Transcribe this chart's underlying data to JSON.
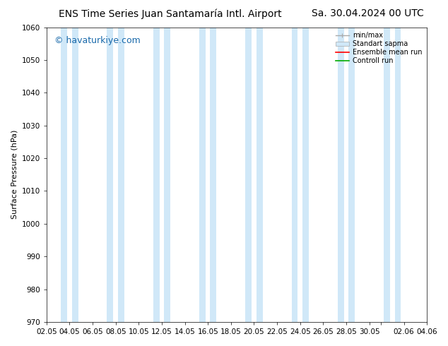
{
  "title_left": "ENS Time Series Juan Santamaría Intl. Airport",
  "title_right": "Sa. 30.04.2024 00 UTC",
  "ylabel": "Surface Pressure (hPa)",
  "watermark": "© havaturkiye.com",
  "ylim": [
    970,
    1060
  ],
  "yticks": [
    970,
    980,
    990,
    1000,
    1010,
    1020,
    1030,
    1040,
    1050,
    1060
  ],
  "min_max_color": "#aaaaaa",
  "std_color": "#d0e8f8",
  "ensemble_mean_color": "#ff0000",
  "control_run_color": "#00aa00",
  "background_color": "#ffffff",
  "vertical_band_color": "#d0e8f8",
  "legend_labels": [
    "min/max",
    "Standart sapma",
    "Ensemble mean run",
    "Controll run"
  ],
  "title_fontsize": 10,
  "axis_fontsize": 8,
  "tick_fontsize": 7.5,
  "watermark_fontsize": 9,
  "tick_days": [
    2,
    4,
    6,
    8,
    10,
    12,
    14,
    16,
    18,
    20,
    22,
    24,
    26,
    28,
    30,
    31,
    33,
    35
  ],
  "tick_labels": [
    "02.05",
    "04.05",
    "06.05",
    "08.05",
    "10.05",
    "12.05",
    "14.05",
    "16.05",
    "18.05",
    "20.05",
    "22.05",
    "24.05",
    "26.05",
    "28.05",
    "30.05",
    "",
    "02.06",
    "04.06"
  ],
  "num_days": 35,
  "band_starts": [
    3,
    4,
    7,
    8,
    11,
    12,
    15,
    16,
    19,
    20,
    23,
    24,
    27,
    28,
    31,
    32
  ],
  "band_widths": [
    1,
    1,
    1,
    1,
    1,
    1,
    1,
    1,
    1,
    1,
    1,
    1,
    1,
    1,
    1,
    1
  ]
}
